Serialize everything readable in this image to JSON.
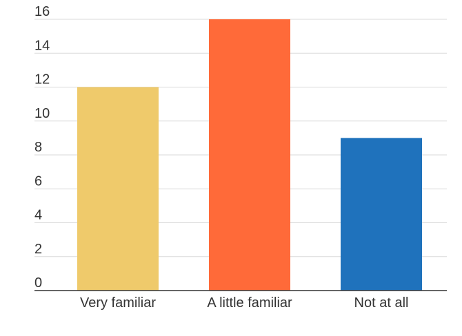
{
  "chart_data": {
    "type": "bar",
    "title": "",
    "xlabel": "",
    "ylabel": "",
    "categories": [
      "Very familiar",
      "A little familiar",
      "Not at all"
    ],
    "values": [
      12,
      16,
      9
    ],
    "colors": [
      "#EFCA6B",
      "#FF6A39",
      "#1F72BC"
    ],
    "ylim": [
      0,
      16
    ],
    "yticks": [
      0,
      2,
      4,
      6,
      8,
      10,
      12,
      14,
      16
    ],
    "grid": true,
    "legend": "none"
  }
}
